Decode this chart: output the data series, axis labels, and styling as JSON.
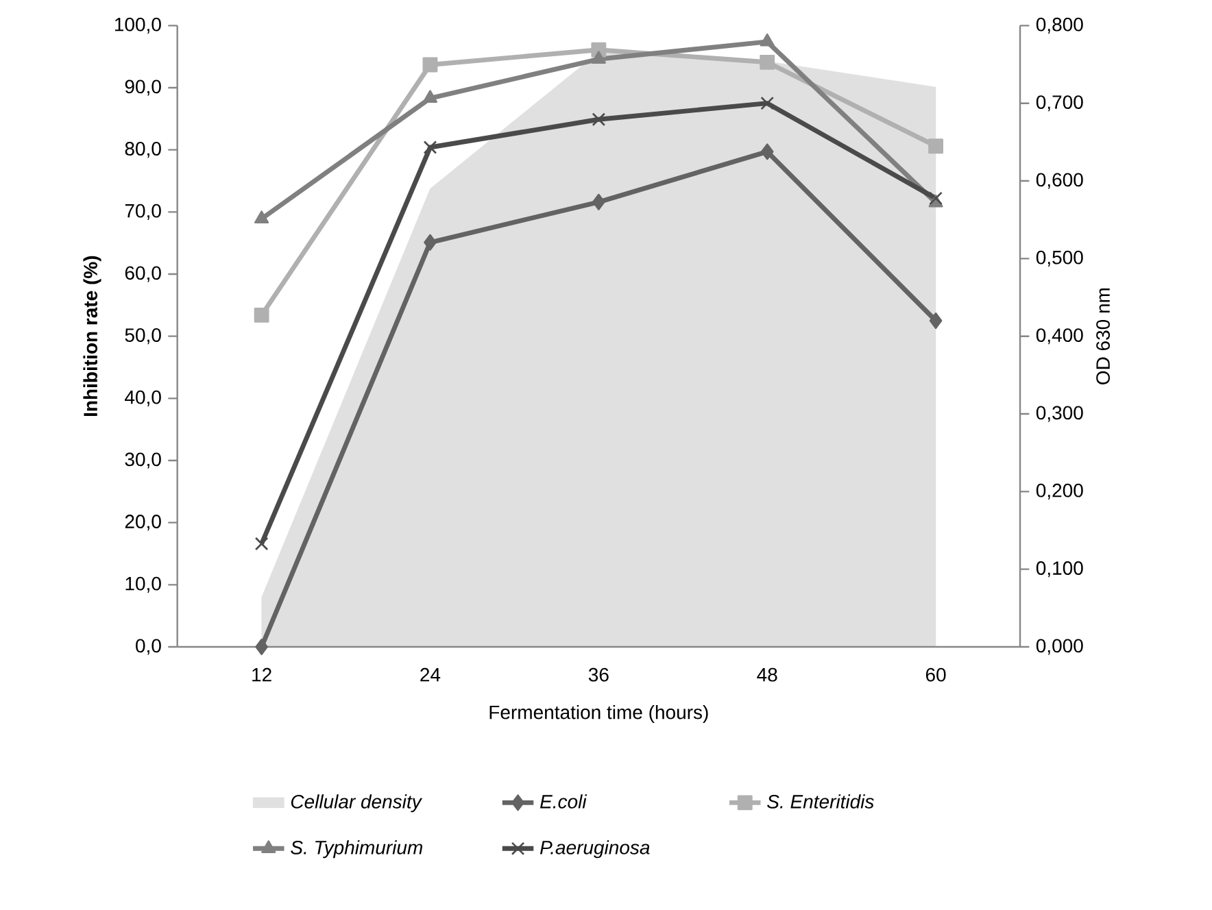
{
  "chart_data": {
    "type": "line",
    "xlabel": "Fermentation time (hours)",
    "ylabel": "Inhibition rate (%)",
    "y2label": "OD 630 nm",
    "categories": [
      "12",
      "24",
      "36",
      "48",
      "60"
    ],
    "ylim": [
      0,
      100
    ],
    "yticks": [
      {
        "value": 0,
        "label": "0,0"
      },
      {
        "value": 10,
        "label": "10,0"
      },
      {
        "value": 20,
        "label": "20,0"
      },
      {
        "value": 30,
        "label": "30,0"
      },
      {
        "value": 40,
        "label": "40,0"
      },
      {
        "value": 50,
        "label": "50,0"
      },
      {
        "value": 60,
        "label": "60,0"
      },
      {
        "value": 70,
        "label": "70,0"
      },
      {
        "value": 80,
        "label": "80,0"
      },
      {
        "value": 90,
        "label": "90,0"
      },
      {
        "value": 100,
        "label": "100,0"
      }
    ],
    "y2lim": [
      0,
      0.8
    ],
    "y2ticks": [
      {
        "value": 0,
        "label": "0,000"
      },
      {
        "value": 0.1,
        "label": "0,100"
      },
      {
        "value": 0.2,
        "label": "0,200"
      },
      {
        "value": 0.3,
        "label": "0,300"
      },
      {
        "value": 0.4,
        "label": "0,400"
      },
      {
        "value": 0.5,
        "label": "0,500"
      },
      {
        "value": 0.6,
        "label": "0,600"
      },
      {
        "value": 0.7,
        "label": "0,700"
      },
      {
        "value": 0.8,
        "label": "0,800"
      }
    ],
    "legend": "bottom",
    "series": [
      {
        "name": "Cellular density",
        "type": "area",
        "axis": "y2",
        "color": "#e0e0e0",
        "values": [
          0.064,
          0.59,
          0.766,
          0.754,
          0.721
        ]
      },
      {
        "name": "E.coli",
        "color": "#636363",
        "marker": "diamond",
        "values": [
          0,
          65.1,
          71.6,
          79.7,
          52.5
        ]
      },
      {
        "name": "S. Enteritidis",
        "color": "#b0b0b0",
        "marker": "square",
        "values": [
          53.4,
          93.7,
          96.1,
          94.1,
          80.6
        ]
      },
      {
        "name": "S. Typhimurium",
        "color": "#808080",
        "marker": "triangle",
        "values": [
          68.9,
          88.3,
          94.6,
          97.4,
          71.5
        ]
      },
      {
        "name": "P.aeruginosa",
        "color": "#4a4a4a",
        "marker": "cross",
        "values": [
          16.6,
          80.4,
          84.9,
          87.5,
          72.2
        ]
      }
    ]
  }
}
